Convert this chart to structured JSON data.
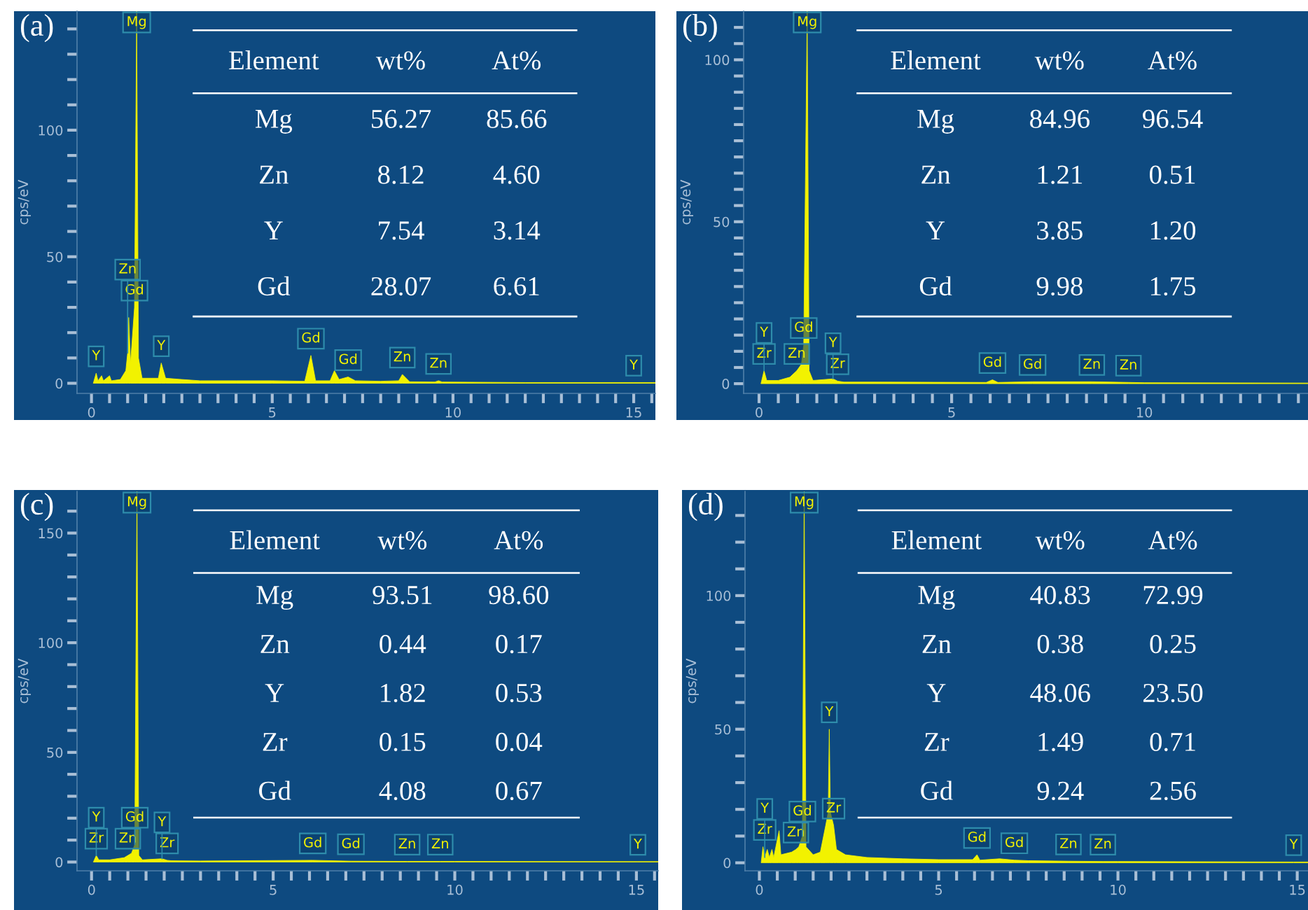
{
  "chart_data": [
    {
      "type": "area",
      "title": "(a)",
      "ylabel": "cps/eV",
      "grid": false,
      "legend": false,
      "series": [
        {
          "color": "#f2f200",
          "x": [
            0.05,
            0.13,
            0.18,
            0.28,
            0.33,
            0.5,
            0.55,
            0.8,
            0.95,
            1.0,
            1.03,
            1.08,
            1.15,
            1.19,
            1.25,
            1.3,
            1.4,
            1.85,
            1.93,
            2.05,
            2.5,
            3,
            4,
            5,
            5.9,
            6.07,
            6.2,
            6.6,
            6.72,
            6.85,
            7.1,
            7.3,
            8.0,
            8.5,
            8.6,
            8.8,
            9.5,
            9.6,
            9.7,
            12,
            15.0,
            15.6
          ],
          "values": [
            0,
            4,
            1,
            3,
            1,
            3,
            1,
            1.5,
            5,
            12,
            26,
            8,
            22,
            30,
            147,
            10,
            2,
            2,
            8,
            2,
            1.5,
            1,
            1,
            1,
            0.8,
            11,
            1,
            1,
            5,
            1.5,
            2.5,
            1,
            0.8,
            1,
            3.5,
            0.6,
            0.5,
            1,
            0.5,
            0.3,
            0.3,
            0.3
          ]
        }
      ],
      "xlim": [
        -0.4,
        15.6
      ],
      "ylim": [
        -4,
        147
      ],
      "xticks": [
        0,
        {
          "value": 0.5,
          "label": null
        },
        {
          "value": 1,
          "label": null
        },
        {
          "value": 1.5,
          "label": null
        },
        {
          "value": 2,
          "label": null
        },
        {
          "value": 2.5,
          "label": null
        },
        {
          "value": 3,
          "label": null
        },
        {
          "value": 3.5,
          "label": null
        },
        {
          "value": 4,
          "label": null
        },
        {
          "value": 4.5,
          "label": null
        },
        5,
        {
          "value": 5.5,
          "label": null
        },
        {
          "value": 6,
          "label": null
        },
        {
          "value": 6.5,
          "label": null
        },
        {
          "value": 7,
          "label": null
        },
        {
          "value": 7.5,
          "label": null
        },
        {
          "value": 8,
          "label": null
        },
        {
          "value": 8.5,
          "label": null
        },
        {
          "value": 9,
          "label": null
        },
        {
          "value": 9.5,
          "label": null
        },
        10,
        {
          "value": 10.5,
          "label": null
        },
        {
          "value": 11,
          "label": null
        },
        {
          "value": 11.5,
          "label": null
        },
        {
          "value": 12,
          "label": null
        },
        {
          "value": 12.5,
          "label": null
        },
        {
          "value": 13,
          "label": null
        },
        {
          "value": 13.5,
          "label": null
        },
        {
          "value": 14,
          "label": null
        },
        {
          "value": 14.5,
          "label": null
        },
        15,
        {
          "value": 15.5,
          "label": null
        }
      ],
      "yticks": [
        0,
        {
          "value": 10,
          "label": null
        },
        {
          "value": 20,
          "label": null
        },
        {
          "value": 30,
          "label": null
        },
        {
          "value": 40,
          "label": null
        },
        50,
        {
          "value": 60,
          "label": null
        },
        {
          "value": 70,
          "label": null
        },
        {
          "value": 80,
          "label": null
        },
        {
          "value": 90,
          "label": null
        },
        100,
        {
          "value": 110,
          "label": null
        },
        {
          "value": 120,
          "label": null
        },
        {
          "value": 130,
          "label": null
        },
        {
          "value": 140,
          "label": null
        }
      ],
      "annotations": [
        {
          "text": "Mg",
          "x": 1.25,
          "y": 147
        },
        {
          "text": "Y",
          "x": 0.13,
          "y": 4
        },
        {
          "text": "Gd",
          "x": 1.19,
          "y": 30
        },
        {
          "text": "Zn",
          "x": 1.0,
          "y": 12
        },
        {
          "text": "Y",
          "x": 1.93,
          "y": 8
        },
        {
          "text": "Gd",
          "x": 6.07,
          "y": 11
        },
        {
          "text": "Gd",
          "x": 7.1,
          "y": 2.5
        },
        {
          "text": "Zn",
          "x": 8.6,
          "y": 3.5
        },
        {
          "text": "Zn",
          "x": 9.6,
          "y": 1
        },
        {
          "text": "Y",
          "x": 15.0,
          "y": 0.3
        },
        "Element",
        "wt%",
        "At%",
        "Mg",
        "56.27",
        "85.66",
        "Zn",
        "8.12",
        "4.60",
        "Y",
        "7.54",
        "3.14",
        "Gd",
        "28.07",
        "6.61"
      ]
    },
    {
      "type": "area",
      "title": "(b)",
      "ylabel": "cps/eV",
      "grid": false,
      "legend": false,
      "series": [
        {
          "color": "#f2f200",
          "x": [
            0.05,
            0.13,
            0.2,
            0.5,
            0.8,
            0.98,
            1.1,
            1.16,
            1.25,
            1.3,
            1.4,
            1.92,
            2.04,
            2.2,
            3,
            5.9,
            6.06,
            6.2,
            7.1,
            8.64,
            9.59,
            10,
            14.25
          ],
          "values": [
            0,
            4,
            1,
            1,
            2,
            4,
            6,
            12,
            115,
            4,
            1,
            1.5,
            0.8,
            0.5,
            0.5,
            0.4,
            1.2,
            0.4,
            0.6,
            0.6,
            0.4,
            0.3,
            0.2
          ]
        }
      ],
      "xlim": [
        -0.4,
        14.25
      ],
      "ylim": [
        -3,
        115
      ],
      "xticks": [
        0,
        {
          "value": 0.5,
          "label": null
        },
        {
          "value": 1,
          "label": null
        },
        {
          "value": 1.5,
          "label": null
        },
        {
          "value": 2,
          "label": null
        },
        {
          "value": 2.5,
          "label": null
        },
        {
          "value": 3,
          "label": null
        },
        {
          "value": 3.5,
          "label": null
        },
        {
          "value": 4,
          "label": null
        },
        {
          "value": 4.5,
          "label": null
        },
        5,
        {
          "value": 5.5,
          "label": null
        },
        {
          "value": 6,
          "label": null
        },
        {
          "value": 6.5,
          "label": null
        },
        {
          "value": 7,
          "label": null
        },
        {
          "value": 7.5,
          "label": null
        },
        {
          "value": 8,
          "label": null
        },
        {
          "value": 8.5,
          "label": null
        },
        {
          "value": 9,
          "label": null
        },
        {
          "value": 9.5,
          "label": null
        },
        10,
        {
          "value": 10.5,
          "label": null
        },
        {
          "value": 11,
          "label": null
        },
        {
          "value": 11.5,
          "label": null
        },
        {
          "value": 12,
          "label": null
        },
        {
          "value": 12.5,
          "label": null
        },
        {
          "value": 13,
          "label": null
        },
        {
          "value": 13.5,
          "label": null
        },
        {
          "value": 14,
          "label": null
        }
      ],
      "yticks": [
        0,
        {
          "value": 5,
          "label": null
        },
        {
          "value": 10,
          "label": null
        },
        {
          "value": 15,
          "label": null
        },
        {
          "value": 20,
          "label": null
        },
        {
          "value": 25,
          "label": null
        },
        {
          "value": 30,
          "label": null
        },
        {
          "value": 35,
          "label": null
        },
        {
          "value": 40,
          "label": null
        },
        {
          "value": 45,
          "label": null
        },
        50,
        {
          "value": 55,
          "label": null
        },
        {
          "value": 60,
          "label": null
        },
        {
          "value": 65,
          "label": null
        },
        {
          "value": 70,
          "label": null
        },
        {
          "value": 75,
          "label": null
        },
        {
          "value": 80,
          "label": null
        },
        {
          "value": 85,
          "label": null
        },
        {
          "value": 90,
          "label": null
        },
        {
          "value": 95,
          "label": null
        },
        100,
        {
          "value": 105,
          "label": null
        },
        {
          "value": 110,
          "label": null
        }
      ],
      "annotations": [
        {
          "text": "Mg",
          "x": 1.25,
          "y": 115
        },
        {
          "text": "Zr",
          "x": 0.13,
          "y": 4
        },
        {
          "text": "Y",
          "x": 0.13,
          "y": 4
        },
        {
          "text": "Zn",
          "x": 0.98,
          "y": 4
        },
        {
          "text": "Gd",
          "x": 1.16,
          "y": 12
        },
        {
          "text": "Zr",
          "x": 2.04,
          "y": 0.8
        },
        {
          "text": "Y",
          "x": 1.92,
          "y": 1.5
        },
        {
          "text": "Gd",
          "x": 6.06,
          "y": 1.2
        },
        {
          "text": "Gd",
          "x": 7.1,
          "y": 0.6
        },
        {
          "text": "Zn",
          "x": 8.64,
          "y": 0.6
        },
        {
          "text": "Zn",
          "x": 9.59,
          "y": 0.4
        },
        "Element",
        "wt%",
        "At%",
        "Mg",
        "84.96",
        "96.54",
        "Zn",
        "1.21",
        "0.51",
        "Y",
        "3.85",
        "1.20",
        "Gd",
        "9.98",
        "1.75"
      ]
    },
    {
      "type": "area",
      "title": "(c)",
      "ylabel": "cps/eV",
      "grid": false,
      "legend": false,
      "series": [
        {
          "color": "#f2f200",
          "x": [
            0.05,
            0.13,
            0.2,
            0.5,
            0.9,
            1.0,
            1.1,
            1.19,
            1.25,
            1.3,
            1.4,
            1.94,
            2.08,
            2.2,
            3,
            6.09,
            7.14,
            8.69,
            9.6,
            10,
            15.04,
            15.6
          ],
          "values": [
            0,
            3,
            1,
            1,
            2,
            3,
            4,
            8,
            169,
            3,
            1,
            1.5,
            0.8,
            0.6,
            0.5,
            0.8,
            0.4,
            0.3,
            0.3,
            0.3,
            0.2,
            0.2
          ]
        }
      ],
      "xlim": [
        -0.4,
        15.6
      ],
      "ylim": [
        -4,
        169
      ],
      "xticks": [
        0,
        {
          "value": 0.5,
          "label": null
        },
        {
          "value": 1,
          "label": null
        },
        {
          "value": 1.5,
          "label": null
        },
        {
          "value": 2,
          "label": null
        },
        {
          "value": 2.5,
          "label": null
        },
        {
          "value": 3,
          "label": null
        },
        {
          "value": 3.5,
          "label": null
        },
        {
          "value": 4,
          "label": null
        },
        {
          "value": 4.5,
          "label": null
        },
        5,
        {
          "value": 5.5,
          "label": null
        },
        {
          "value": 6,
          "label": null
        },
        {
          "value": 6.5,
          "label": null
        },
        {
          "value": 7,
          "label": null
        },
        {
          "value": 7.5,
          "label": null
        },
        {
          "value": 8,
          "label": null
        },
        {
          "value": 8.5,
          "label": null
        },
        {
          "value": 9,
          "label": null
        },
        {
          "value": 9.5,
          "label": null
        },
        10,
        {
          "value": 10.5,
          "label": null
        },
        {
          "value": 11,
          "label": null
        },
        {
          "value": 11.5,
          "label": null
        },
        {
          "value": 12,
          "label": null
        },
        {
          "value": 12.5,
          "label": null
        },
        {
          "value": 13,
          "label": null
        },
        {
          "value": 13.5,
          "label": null
        },
        {
          "value": 14,
          "label": null
        },
        {
          "value": 14.5,
          "label": null
        },
        15,
        {
          "value": 15.5,
          "label": null
        }
      ],
      "yticks": [
        0,
        {
          "value": 10,
          "label": null
        },
        {
          "value": 20,
          "label": null
        },
        {
          "value": 30,
          "label": null
        },
        {
          "value": 40,
          "label": null
        },
        50,
        {
          "value": 60,
          "label": null
        },
        {
          "value": 70,
          "label": null
        },
        {
          "value": 80,
          "label": null
        },
        {
          "value": 90,
          "label": null
        },
        100,
        {
          "value": 110,
          "label": null
        },
        {
          "value": 120,
          "label": null
        },
        {
          "value": 130,
          "label": null
        },
        {
          "value": 140,
          "label": null
        },
        150,
        {
          "value": 160,
          "label": null
        }
      ],
      "annotations": [
        {
          "text": "Mg",
          "x": 1.25,
          "y": 169
        },
        {
          "text": "Zr",
          "x": 0.13,
          "y": 3
        },
        {
          "text": "Y",
          "x": 0.13,
          "y": 3
        },
        {
          "text": "Zn",
          "x": 1.0,
          "y": 3
        },
        {
          "text": "Gd",
          "x": 1.19,
          "y": 8
        },
        {
          "text": "Zr",
          "x": 2.08,
          "y": 0.8
        },
        {
          "text": "Y",
          "x": 1.94,
          "y": 1.5
        },
        {
          "text": "Gd",
          "x": 6.09,
          "y": 0.8
        },
        {
          "text": "Gd",
          "x": 7.14,
          "y": 0.4
        },
        {
          "text": "Zn",
          "x": 8.69,
          "y": 0.3
        },
        {
          "text": "Zn",
          "x": 9.6,
          "y": 0.3
        },
        {
          "text": "Y",
          "x": 15.04,
          "y": 0.2
        },
        "Element",
        "wt%",
        "At%",
        "Mg",
        "93.51",
        "98.60",
        "Zn",
        "0.44",
        "0.17",
        "Y",
        "1.82",
        "0.53",
        "Zr",
        "0.15",
        "0.04",
        "Gd",
        "4.08",
        "0.67"
      ]
    },
    {
      "type": "area",
      "title": "(d)",
      "ylabel": "cps/eV",
      "grid": false,
      "legend": false,
      "series": [
        {
          "color": "#f2f200",
          "x": [
            0.05,
            0.1,
            0.15,
            0.22,
            0.28,
            0.35,
            0.4,
            0.55,
            0.6,
            0.9,
            1.02,
            1.1,
            1.2,
            1.25,
            1.3,
            1.5,
            1.7,
            1.85,
            1.92,
            1.95,
            1.98,
            2.07,
            2.15,
            2.4,
            3,
            4,
            5,
            5.95,
            6.07,
            6.15,
            6.7,
            7.11,
            7.5,
            8.62,
            9.58,
            10,
            14.9,
            15.3
          ],
          "values": [
            0,
            6,
            2,
            5,
            2,
            5,
            2,
            12,
            3,
            4,
            5,
            6,
            10,
            139,
            6,
            3,
            4,
            14,
            19,
            50,
            19,
            14,
            5,
            3,
            2,
            1.5,
            1.2,
            1.2,
            3,
            1,
            1.5,
            1,
            0.8,
            0.6,
            0.5,
            0.5,
            0.3,
            0.3
          ]
        }
      ],
      "xlim": [
        -0.4,
        15.3
      ],
      "ylim": [
        -3,
        139
      ],
      "xticks": [
        0,
        {
          "value": 0.5,
          "label": null
        },
        {
          "value": 1,
          "label": null
        },
        {
          "value": 1.5,
          "label": null
        },
        {
          "value": 2,
          "label": null
        },
        {
          "value": 2.5,
          "label": null
        },
        {
          "value": 3,
          "label": null
        },
        {
          "value": 3.5,
          "label": null
        },
        {
          "value": 4,
          "label": null
        },
        {
          "value": 4.5,
          "label": null
        },
        5,
        {
          "value": 5.5,
          "label": null
        },
        {
          "value": 6,
          "label": null
        },
        {
          "value": 6.5,
          "label": null
        },
        {
          "value": 7,
          "label": null
        },
        {
          "value": 7.5,
          "label": null
        },
        {
          "value": 8,
          "label": null
        },
        {
          "value": 8.5,
          "label": null
        },
        {
          "value": 9,
          "label": null
        },
        {
          "value": 9.5,
          "label": null
        },
        10,
        {
          "value": 10.5,
          "label": null
        },
        {
          "value": 11,
          "label": null
        },
        {
          "value": 11.5,
          "label": null
        },
        {
          "value": 12,
          "label": null
        },
        {
          "value": 12.5,
          "label": null
        },
        {
          "value": 13,
          "label": null
        },
        {
          "value": 13.5,
          "label": null
        },
        {
          "value": 14,
          "label": null
        },
        {
          "value": 14.5,
          "label": null
        },
        15
      ],
      "yticks": [
        0,
        {
          "value": 10,
          "label": null
        },
        {
          "value": 20,
          "label": null
        },
        {
          "value": 30,
          "label": null
        },
        {
          "value": 40,
          "label": null
        },
        50,
        {
          "value": 60,
          "label": null
        },
        {
          "value": 70,
          "label": null
        },
        {
          "value": 80,
          "label": null
        },
        {
          "value": 90,
          "label": null
        },
        100,
        {
          "value": 110,
          "label": null
        },
        {
          "value": 120,
          "label": null
        },
        {
          "value": 130,
          "label": null
        }
      ],
      "annotations": [
        {
          "text": "Mg",
          "x": 1.25,
          "y": 139
        },
        {
          "text": "Zr",
          "x": 0.15,
          "y": 2
        },
        {
          "text": "Y",
          "x": 0.15,
          "y": 2
        },
        {
          "text": "Zn",
          "x": 1.02,
          "y": 5
        },
        {
          "text": "Gd",
          "x": 1.2,
          "y": 10
        },
        {
          "text": "Zr",
          "x": 2.07,
          "y": 14
        },
        {
          "text": "Y",
          "x": 1.95,
          "y": 50
        },
        {
          "text": "Gd",
          "x": 6.07,
          "y": 3
        },
        {
          "text": "Gd",
          "x": 7.11,
          "y": 1
        },
        {
          "text": "Zn",
          "x": 8.62,
          "y": 0.6
        },
        {
          "text": "Zn",
          "x": 9.58,
          "y": 0.5
        },
        {
          "text": "Y",
          "x": 14.9,
          "y": 0.3
        },
        "Element",
        "wt%",
        "At%",
        "Mg",
        "40.83",
        "72.99",
        "Zn",
        "0.38",
        "0.25",
        "Y",
        "48.06",
        "23.50",
        "Zr",
        "1.49",
        "0.71",
        "Gd",
        "9.24",
        "2.56"
      ]
    }
  ]
}
